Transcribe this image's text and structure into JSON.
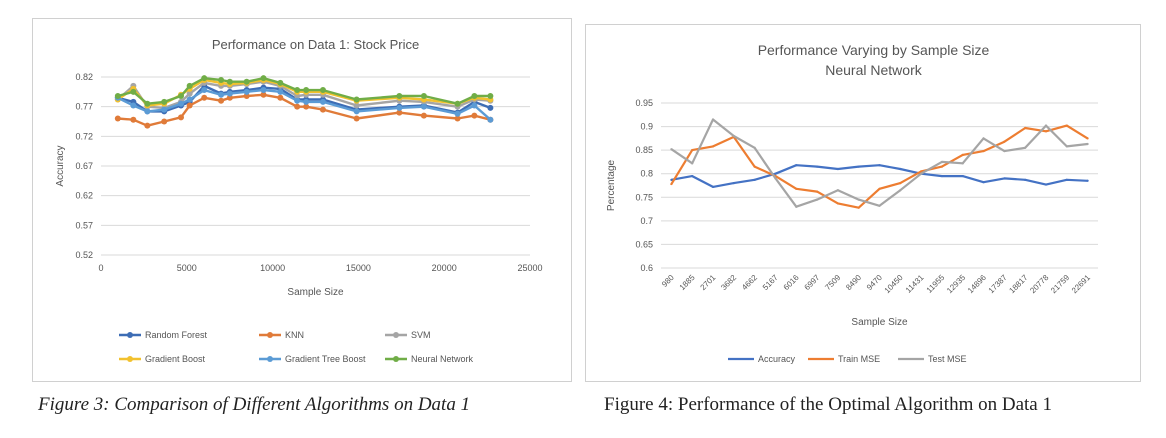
{
  "figures": [
    {
      "caption": "Figure 3: Comparison of Different Algorithms on Data 1",
      "chart_data": {
        "type": "line",
        "title": "Performance on Data 1: Stock Price",
        "subtitle": "",
        "xlabel": "Sample Size",
        "ylabel": "Accuracy",
        "xlim": [
          0,
          25000
        ],
        "ylim": [
          0.52,
          0.82
        ],
        "xticks": [
          0,
          5000,
          10000,
          15000,
          20000,
          25000
        ],
        "xtick_labels": [
          "0",
          "5000",
          "10000",
          "15000",
          "20000",
          "25000"
        ],
        "yticks": [
          0.52,
          0.57,
          0.62,
          0.67,
          0.72,
          0.77,
          0.82
        ],
        "ytick_labels": [
          "0.52",
          "0.57",
          "0.62",
          "0.67",
          "0.72",
          "0.77",
          "0.82"
        ],
        "grid": "horizontal",
        "legend_position": "bottom",
        "x": [
          980,
          1885,
          2701,
          3682,
          4662,
          5167,
          6016,
          6997,
          7509,
          8490,
          9470,
          10450,
          11431,
          11955,
          12935,
          14896,
          17387,
          18817,
          20778,
          21759,
          22691
        ],
        "series": [
          {
            "name": "Random Forest",
            "color": "#3d6db5",
            "values": [
              0.785,
              0.778,
              0.762,
              0.762,
              0.772,
              0.778,
              0.805,
              0.792,
              0.795,
              0.798,
              0.802,
              0.8,
              0.782,
              0.782,
              0.782,
              0.765,
              0.77,
              0.772,
              0.76,
              0.778,
              0.768
            ]
          },
          {
            "name": "KNN",
            "color": "#e07b39",
            "values": [
              0.75,
              0.748,
              0.738,
              0.745,
              0.752,
              0.772,
              0.785,
              0.78,
              0.785,
              0.788,
              0.79,
              0.785,
              0.77,
              0.77,
              0.765,
              0.75,
              0.76,
              0.755,
              0.75,
              0.755,
              0.748
            ]
          },
          {
            "name": "SVM",
            "color": "#a5a5a5",
            "values": [
              0.782,
              0.805,
              0.77,
              0.768,
              0.778,
              0.792,
              0.81,
              0.805,
              0.805,
              0.808,
              0.812,
              0.805,
              0.788,
              0.79,
              0.79,
              0.772,
              0.78,
              0.778,
              0.77,
              0.782,
              0.78
            ]
          },
          {
            "name": "Gradient Boost",
            "color": "#f2c12e",
            "values": [
              0.782,
              0.8,
              0.772,
              0.775,
              0.79,
              0.8,
              0.815,
              0.81,
              0.808,
              0.81,
              0.815,
              0.808,
              0.795,
              0.795,
              0.795,
              0.78,
              0.785,
              0.782,
              0.775,
              0.785,
              0.782
            ]
          },
          {
            "name": "Gradient Tree  Boost",
            "color": "#5b9bd5",
            "values": [
              0.785,
              0.772,
              0.762,
              0.765,
              0.775,
              0.782,
              0.798,
              0.79,
              0.792,
              0.795,
              0.798,
              0.795,
              0.78,
              0.778,
              0.778,
              0.762,
              0.768,
              0.77,
              0.758,
              0.772,
              0.748
            ]
          },
          {
            "name": "Neural Network",
            "color": "#70ad47",
            "values": [
              0.788,
              0.795,
              0.775,
              0.778,
              0.788,
              0.805,
              0.818,
              0.815,
              0.812,
              0.812,
              0.818,
              0.81,
              0.798,
              0.798,
              0.798,
              0.782,
              0.788,
              0.788,
              0.775,
              0.788,
              0.788
            ]
          }
        ]
      }
    },
    {
      "caption": "Figure 4: Performance of the Optimal Algorithm on Data 1",
      "chart_data": {
        "type": "line",
        "title": "Performance Varying by Sample Size",
        "subtitle": "Neural Network",
        "xlabel": "Sample Size",
        "ylabel": "Percentage",
        "ylim": [
          0.6,
          0.95
        ],
        "yticks": [
          0.6,
          0.65,
          0.7,
          0.75,
          0.8,
          0.85,
          0.9,
          0.95
        ],
        "ytick_labels": [
          "0.6",
          "0.65",
          "0.7",
          "0.75",
          "0.8",
          "0.85",
          "0.9",
          "0.95"
        ],
        "grid": "horizontal",
        "legend_position": "bottom",
        "categories": [
          "980",
          "1885",
          "2701",
          "3682",
          "4662",
          "5167",
          "6016",
          "6997",
          "7509",
          "8490",
          "9470",
          "10450",
          "11431",
          "11955",
          "12935",
          "14896",
          "17387",
          "18817",
          "20778",
          "21759",
          "22691"
        ],
        "series": [
          {
            "name": "Accuracy",
            "color": "#4472c4",
            "values": [
              0.787,
              0.795,
              0.772,
              0.78,
              0.787,
              0.8,
              0.818,
              0.815,
              0.81,
              0.815,
              0.818,
              0.81,
              0.8,
              0.795,
              0.795,
              0.782,
              0.79,
              0.787,
              0.777,
              0.787,
              0.785
            ]
          },
          {
            "name": "Train MSE",
            "color": "#ed7d31",
            "values": [
              0.778,
              0.85,
              0.858,
              0.878,
              0.815,
              0.795,
              0.768,
              0.762,
              0.737,
              0.728,
              0.768,
              0.78,
              0.805,
              0.815,
              0.84,
              0.848,
              0.868,
              0.897,
              0.89,
              0.902,
              0.875
            ]
          },
          {
            "name": "Test MSE",
            "color": "#a5a5a5",
            "values": [
              0.852,
              0.822,
              0.915,
              0.88,
              0.855,
              0.79,
              0.73,
              0.745,
              0.765,
              0.745,
              0.732,
              0.765,
              0.8,
              0.825,
              0.822,
              0.875,
              0.848,
              0.855,
              0.902,
              0.858,
              0.863
            ]
          }
        ]
      }
    }
  ]
}
